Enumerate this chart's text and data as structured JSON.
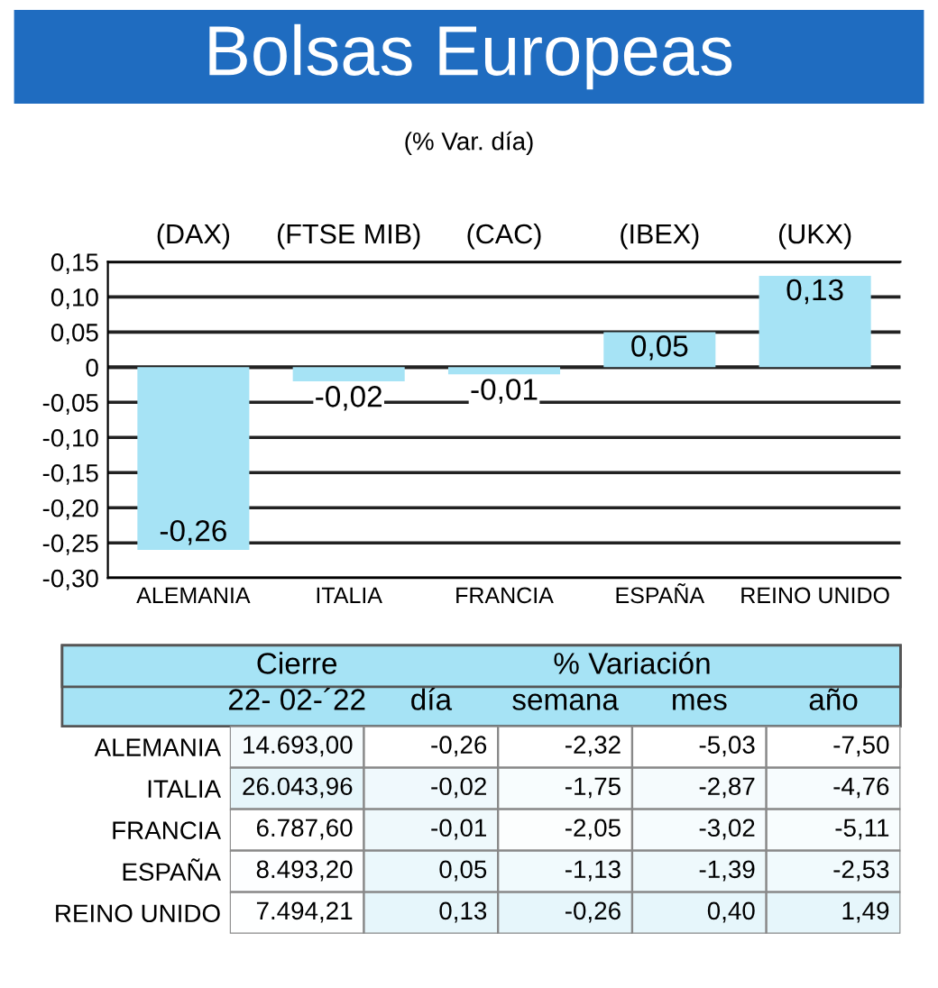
{
  "chart_data": [
    {
      "type": "bar",
      "title": "Bolsas Europeas",
      "subtitle": "(% Var. día)",
      "categories": [
        "ALEMANIA",
        "ITALIA",
        "FRANCIA",
        "ESPAÑA",
        "REINO UNIDO"
      ],
      "values": [
        -0.26,
        -0.02,
        -0.01,
        0.05,
        0.13
      ],
      "color": "#a6e3f5",
      "ylim": [
        -0.3,
        0.15
      ],
      "yticks": [
        {
          "value": 0.15,
          "label": "0,15"
        },
        {
          "value": 0.1,
          "label": "0,10"
        },
        {
          "value": 0.05,
          "label": "0,05"
        },
        0,
        {
          "value": -0.05,
          "label": "-0,05"
        },
        {
          "value": -0.1,
          "label": "-0,10"
        },
        {
          "value": -0.15,
          "label": "-0,15"
        },
        {
          "value": -0.2,
          "label": "-0,20"
        },
        {
          "value": -0.25,
          "label": "-0,25"
        },
        {
          "value": -0.3,
          "label": "-0,30"
        }
      ],
      "value_labels": [
        "-0,26",
        "-0,02",
        "-0,01",
        "0,05",
        "0,13"
      ],
      "grid": "y",
      "annotations": [
        "(DAX)",
        "(FTSE MIB)",
        "(CAC)",
        "(IBEX)",
        "(UKX)"
      ]
    },
    {
      "type": "heatmap",
      "color": "#ffffff",
      "categories": [
        "22- 02-´22",
        "día",
        "semana",
        "mes",
        "año"
      ],
      "y_categories": [
        "ALEMANIA",
        "ITALIA",
        "FRANCIA",
        "ESPAÑA",
        "REINO UNIDO"
      ],
      "cells": [
        [
          14693.0,
          -0.26,
          -2.32,
          -5.03,
          -7.5
        ],
        [
          26043.96,
          -0.02,
          -1.75,
          -2.87,
          -4.76
        ],
        [
          6787.6,
          -0.01,
          -2.05,
          -3.02,
          -5.11
        ],
        [
          8493.2,
          0.05,
          -1.13,
          -1.39,
          -2.53
        ],
        [
          7494.21,
          0.13,
          -0.26,
          0.4,
          1.49
        ]
      ],
      "cell_labels": [
        [
          "14.693,00",
          "-0,26",
          "-2,32",
          "-5,03",
          "-7,50"
        ],
        [
          "26.043,96",
          "-0,02",
          "-1,75",
          "-2,87",
          "-4,76"
        ],
        [
          "6.787,60",
          "-0,01",
          "-2,05",
          "-3,02",
          "-5,11"
        ],
        [
          "8.493,20",
          "0,05",
          "-1,13",
          "-1,39",
          "-2,53"
        ],
        [
          "7.494,21",
          "0,13",
          "-0,26",
          "0,40",
          "1,49"
        ]
      ],
      "annotations": [
        "Cierre",
        "% Variación"
      ]
    }
  ]
}
